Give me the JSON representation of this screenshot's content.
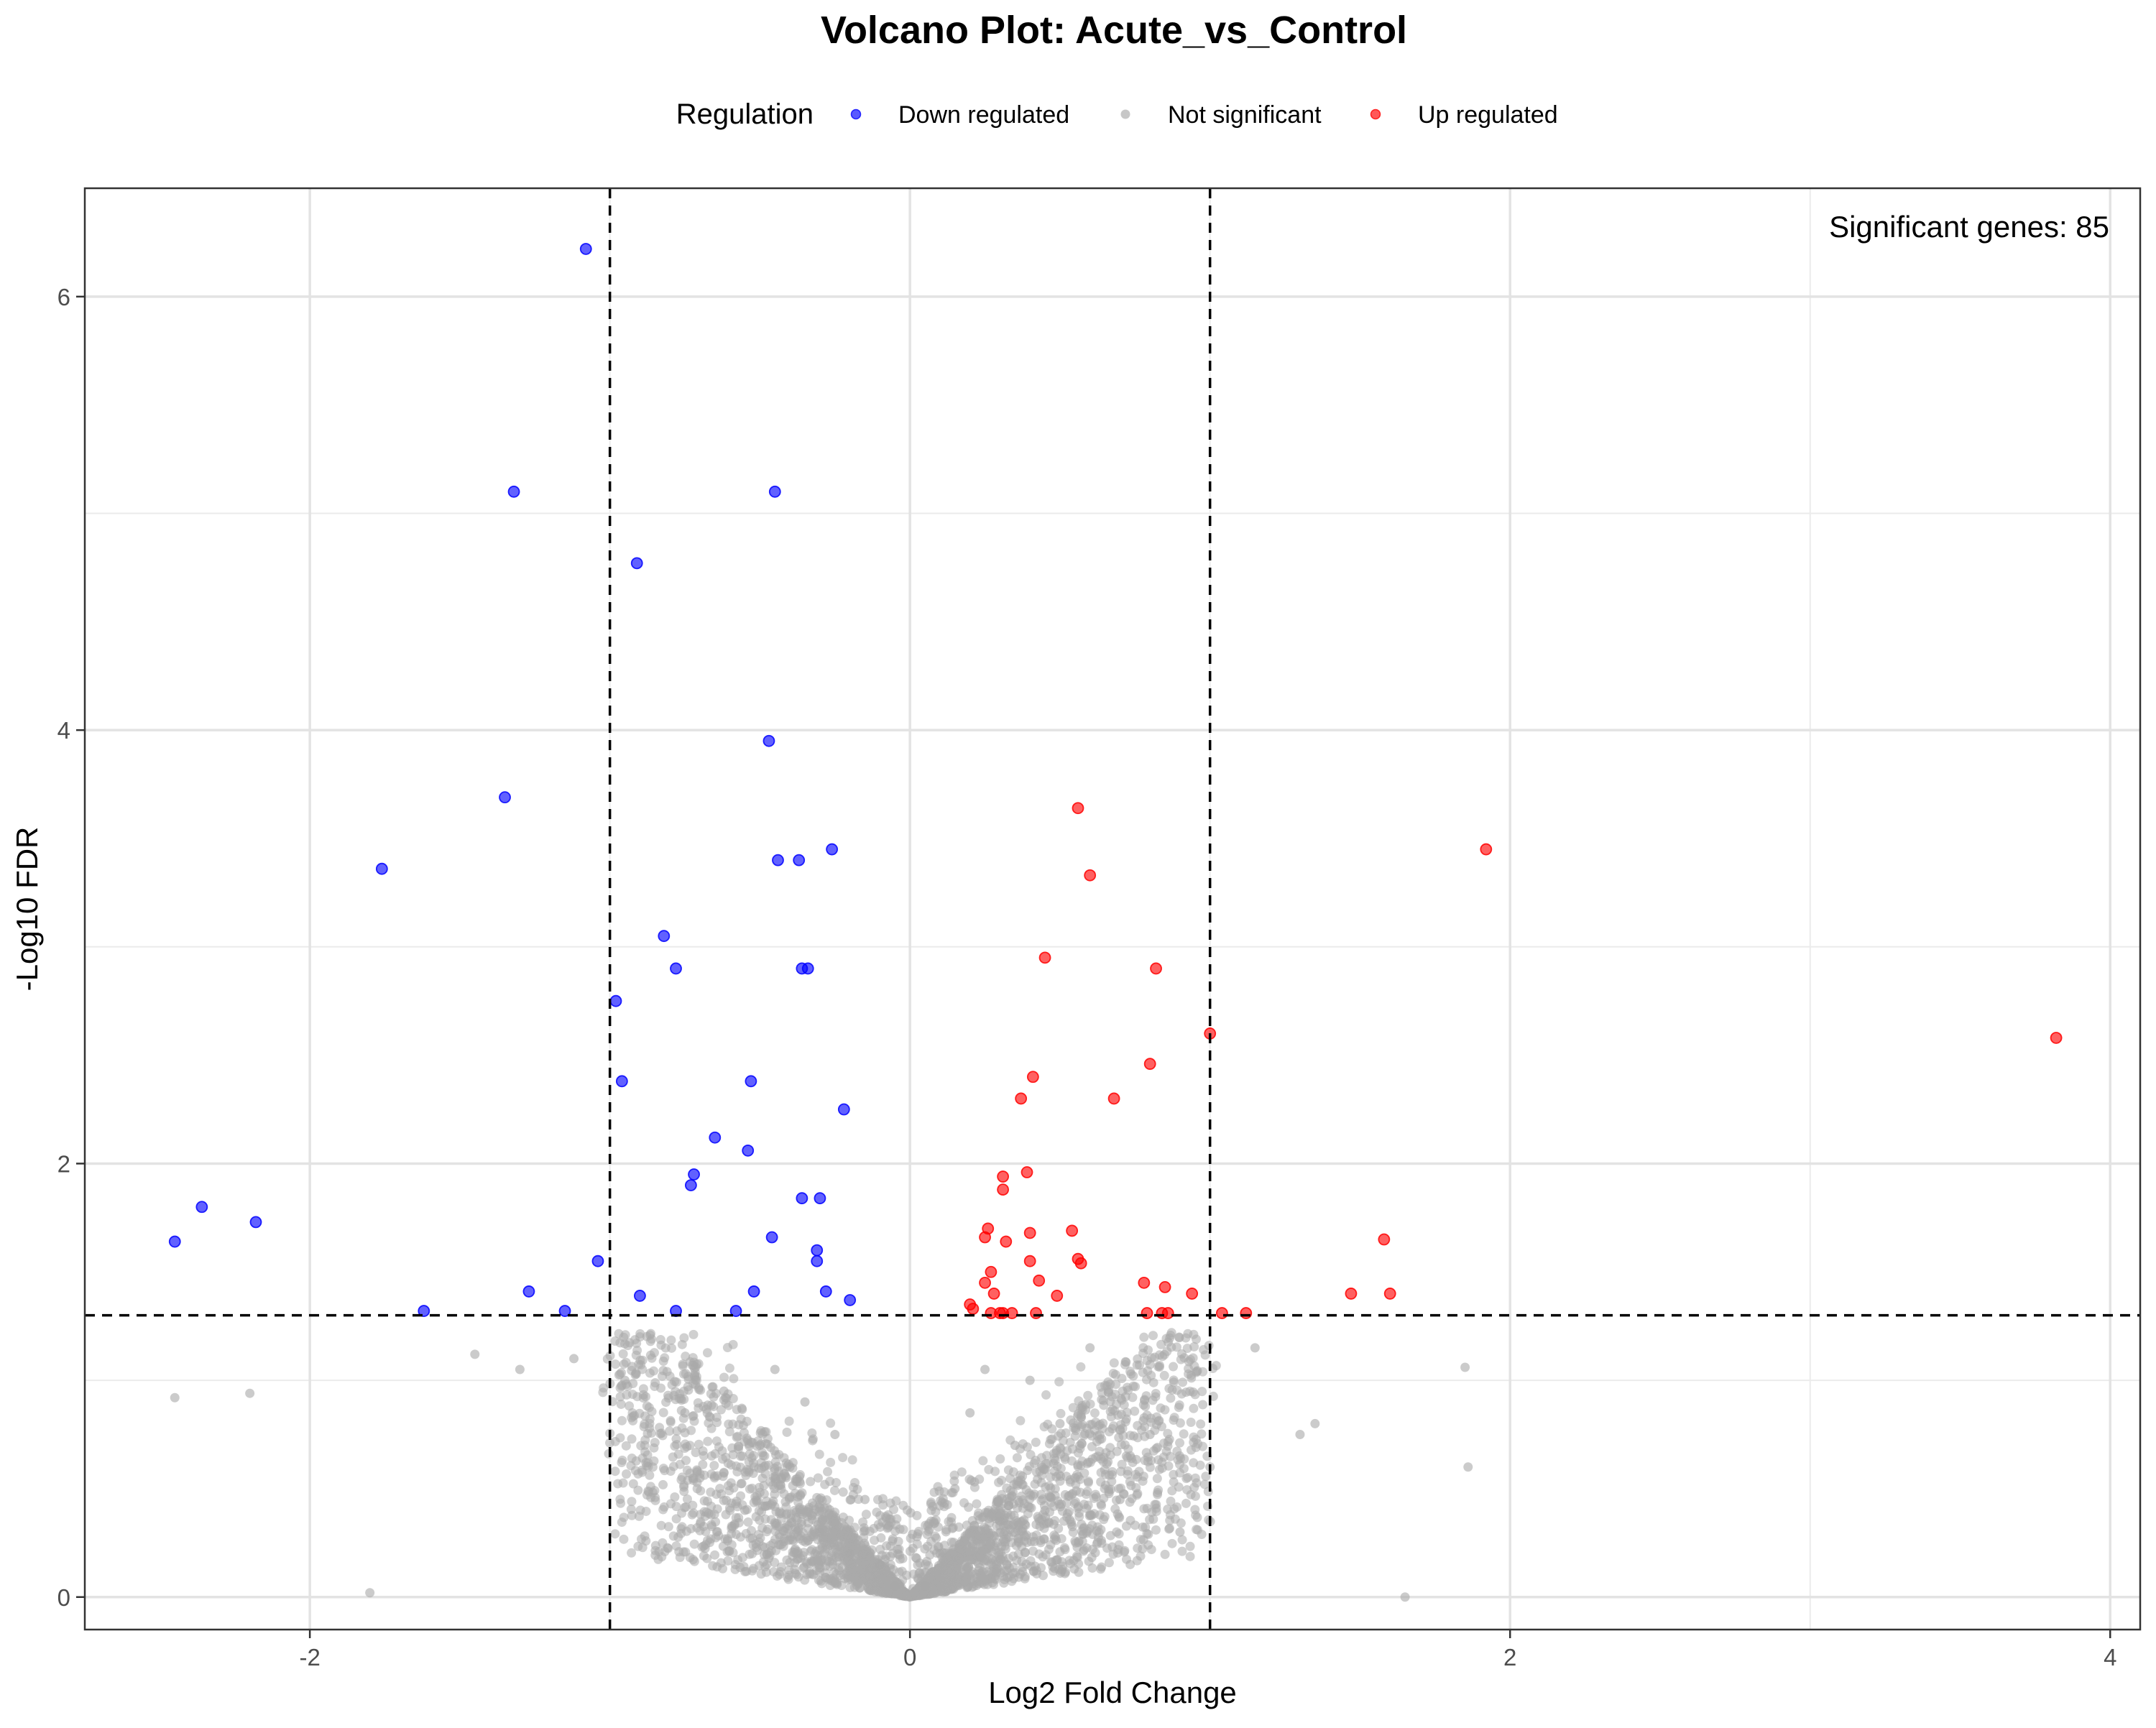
{
  "chart_data": {
    "type": "scatter",
    "title": "Volcano Plot: Acute_vs_Control",
    "xlabel": "Log2 Fold Change",
    "ylabel": "-Log10 FDR",
    "xlim": [
      -2.75,
      4.1
    ],
    "ylim": [
      -0.15,
      6.5
    ],
    "x_ticks": [
      -2,
      0,
      2,
      4
    ],
    "x_tick_labels": [
      "-2",
      "0",
      "2",
      "4"
    ],
    "y_ticks": [
      0,
      2,
      4,
      6
    ],
    "y_tick_labels": [
      "0",
      "2",
      "4",
      "6"
    ],
    "grid": true,
    "legend": {
      "title": "Regulation",
      "placement": "top",
      "entries": [
        {
          "label": "Down regulated",
          "color": "#0000ff"
        },
        {
          "label": "Not significant",
          "color": "#a9a9a9"
        },
        {
          "label": "Up regulated",
          "color": "#ff0000"
        }
      ]
    },
    "annotation": "Significant genes: 85",
    "thresholds": {
      "fc_lines": [
        -1,
        1
      ],
      "fdr_line": 1.3
    },
    "series": [
      {
        "name": "Down regulated",
        "color": "#0000ff",
        "points": [
          [
            -1.08,
            6.22
          ],
          [
            -1.32,
            5.1
          ],
          [
            -0.45,
            5.1
          ],
          [
            -0.91,
            4.77
          ],
          [
            -0.47,
            3.95
          ],
          [
            -1.35,
            3.69
          ],
          [
            -1.76,
            3.36
          ],
          [
            -0.26,
            3.45
          ],
          [
            -0.44,
            3.4
          ],
          [
            -0.37,
            3.4
          ],
          [
            -0.82,
            3.05
          ],
          [
            -0.78,
            2.9
          ],
          [
            -0.36,
            2.9
          ],
          [
            -0.34,
            2.9
          ],
          [
            -0.98,
            2.75
          ],
          [
            -0.96,
            2.38
          ],
          [
            -0.53,
            2.38
          ],
          [
            -0.22,
            2.25
          ],
          [
            -0.65,
            2.12
          ],
          [
            -0.54,
            2.06
          ],
          [
            -0.72,
            1.95
          ],
          [
            -0.73,
            1.9
          ],
          [
            -0.36,
            1.84
          ],
          [
            -0.3,
            1.84
          ],
          [
            -2.36,
            1.8
          ],
          [
            -2.18,
            1.73
          ],
          [
            -0.46,
            1.66
          ],
          [
            -2.45,
            1.64
          ],
          [
            -0.31,
            1.6
          ],
          [
            -1.04,
            1.55
          ],
          [
            -0.31,
            1.55
          ],
          [
            -1.27,
            1.41
          ],
          [
            -0.9,
            1.39
          ],
          [
            -0.52,
            1.41
          ],
          [
            -0.28,
            1.41
          ],
          [
            -0.2,
            1.37
          ],
          [
            -1.62,
            1.32
          ],
          [
            -1.15,
            1.32
          ],
          [
            -0.78,
            1.32
          ],
          [
            -0.58,
            1.32
          ]
        ]
      },
      {
        "name": "Not significant",
        "color": "#a9a9a9",
        "points": [
          [
            -1.8,
            0.02
          ],
          [
            -2.45,
            0.92
          ],
          [
            -2.2,
            0.94
          ],
          [
            -1.45,
            1.12
          ],
          [
            -1.3,
            1.05
          ],
          [
            -1.12,
            1.1
          ],
          [
            -0.95,
            1.0
          ],
          [
            -0.88,
            0.62
          ],
          [
            -0.75,
            0.85
          ],
          [
            -0.7,
            0.55
          ],
          [
            -0.62,
            0.95
          ],
          [
            -0.55,
            0.4
          ],
          [
            -0.5,
            0.7
          ],
          [
            -0.45,
            1.05
          ],
          [
            -0.4,
            0.6
          ],
          [
            -0.35,
            0.9
          ],
          [
            -0.3,
            0.3
          ],
          [
            -0.25,
            0.75
          ],
          [
            -0.2,
            0.2
          ],
          [
            -0.15,
            0.45
          ],
          [
            -0.1,
            0.15
          ],
          [
            -0.05,
            0.05
          ],
          [
            0.05,
            0.05
          ],
          [
            0.1,
            0.2
          ],
          [
            0.15,
            0.5
          ],
          [
            0.2,
            0.85
          ],
          [
            0.25,
            1.05
          ],
          [
            0.3,
            0.35
          ],
          [
            0.35,
            0.7
          ],
          [
            0.4,
            1.0
          ],
          [
            0.45,
            0.4
          ],
          [
            0.5,
            0.8
          ],
          [
            0.55,
            0.55
          ],
          [
            0.6,
            1.15
          ],
          [
            0.7,
            0.45
          ],
          [
            0.8,
            0.75
          ],
          [
            0.9,
            0.3
          ],
          [
            1.0,
            0.6
          ],
          [
            1.15,
            1.15
          ],
          [
            1.3,
            0.75
          ],
          [
            1.35,
            0.8
          ],
          [
            1.85,
            1.06
          ],
          [
            1.86,
            0.6
          ],
          [
            1.65,
            0.0
          ]
        ]
      },
      {
        "name": "Up regulated",
        "color": "#ff0000",
        "points": [
          [
            3.82,
            2.58
          ],
          [
            1.92,
            3.45
          ],
          [
            0.56,
            3.64
          ],
          [
            0.6,
            3.33
          ],
          [
            0.45,
            2.95
          ],
          [
            0.82,
            2.9
          ],
          [
            1.0,
            2.6
          ],
          [
            0.8,
            2.46
          ],
          [
            0.41,
            2.4
          ],
          [
            0.37,
            2.3
          ],
          [
            0.68,
            2.3
          ],
          [
            0.39,
            1.96
          ],
          [
            0.31,
            1.94
          ],
          [
            0.31,
            1.88
          ],
          [
            0.26,
            1.7
          ],
          [
            0.25,
            1.66
          ],
          [
            0.54,
            1.69
          ],
          [
            0.4,
            1.68
          ],
          [
            0.32,
            1.64
          ],
          [
            1.58,
            1.65
          ],
          [
            0.56,
            1.56
          ],
          [
            0.57,
            1.54
          ],
          [
            0.4,
            1.55
          ],
          [
            0.27,
            1.5
          ],
          [
            0.25,
            1.45
          ],
          [
            0.43,
            1.46
          ],
          [
            0.78,
            1.45
          ],
          [
            0.85,
            1.43
          ],
          [
            0.28,
            1.4
          ],
          [
            0.49,
            1.39
          ],
          [
            0.94,
            1.4
          ],
          [
            1.47,
            1.4
          ],
          [
            1.6,
            1.4
          ],
          [
            0.2,
            1.35
          ],
          [
            0.21,
            1.33
          ],
          [
            0.27,
            1.31
          ],
          [
            0.31,
            1.31
          ],
          [
            0.34,
            1.31
          ],
          [
            0.42,
            1.31
          ],
          [
            0.79,
            1.31
          ],
          [
            0.84,
            1.31
          ],
          [
            0.86,
            1.31
          ],
          [
            1.04,
            1.31
          ],
          [
            1.12,
            1.31
          ],
          [
            0.3,
            1.31
          ]
        ]
      }
    ]
  }
}
